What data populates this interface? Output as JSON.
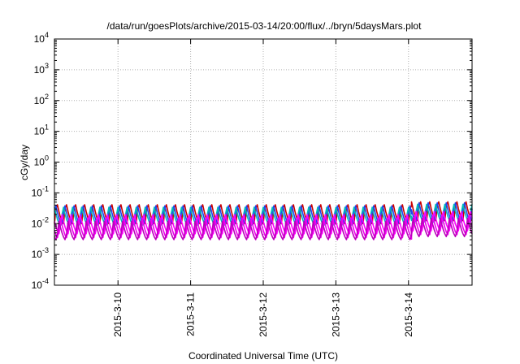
{
  "chart_data": {
    "type": "line",
    "title": "/data/run/goesPlots/archive/2015-03-14/20:00/flux/../bryn/5daysMars.plot",
    "xlabel": "Coordinated Universal Time (UTC)",
    "ylabel": "cGy/day",
    "x_range": [
      "2015-03-09 03:00",
      "2015-03-14 21:00"
    ],
    "x_ticks": [
      "2015-3-10",
      "2015-3-11",
      "2015-3-12",
      "2015-3-13",
      "2015-3-14"
    ],
    "y_scale": "log",
    "ylim": [
      0.0001,
      10000
    ],
    "y_ticks": [
      {
        "mantissa": "10",
        "exponent": "-4",
        "value": 0.0001
      },
      {
        "mantissa": "10",
        "exponent": "-3",
        "value": 0.001
      },
      {
        "mantissa": "10",
        "exponent": "-2",
        "value": 0.01
      },
      {
        "mantissa": "10",
        "exponent": "-1",
        "value": 0.1
      },
      {
        "mantissa": "10",
        "exponent": "0",
        "value": 1
      },
      {
        "mantissa": "10",
        "exponent": "1",
        "value": 10
      },
      {
        "mantissa": "10",
        "exponent": "2",
        "value": 100
      },
      {
        "mantissa": "10",
        "exponent": "3",
        "value": 1000
      },
      {
        "mantissa": "10",
        "exponent": "4",
        "value": 10000
      }
    ],
    "grid": true,
    "legend": "none",
    "oscillation": {
      "period_hours": 3,
      "jump_time": "2015-03-14 01:00",
      "pre_jump_scale": 1.0,
      "post_jump_scale": 1.25
    },
    "series": [
      {
        "color": "#cc0000",
        "peak": 0.055,
        "trough": 0.01
      },
      {
        "color": "#2244ee",
        "peak": 0.048,
        "trough": 0.009
      },
      {
        "color": "#00bbbb",
        "peak": 0.04,
        "trough": 0.0085
      },
      {
        "color": "#ff00ff",
        "peak": 0.022,
        "trough": 0.0046
      },
      {
        "color": "#ee00ee",
        "peak": 0.016,
        "trough": 0.0034
      },
      {
        "color": "#bb00bb",
        "peak": 0.012,
        "trough": 0.0029
      }
    ]
  }
}
